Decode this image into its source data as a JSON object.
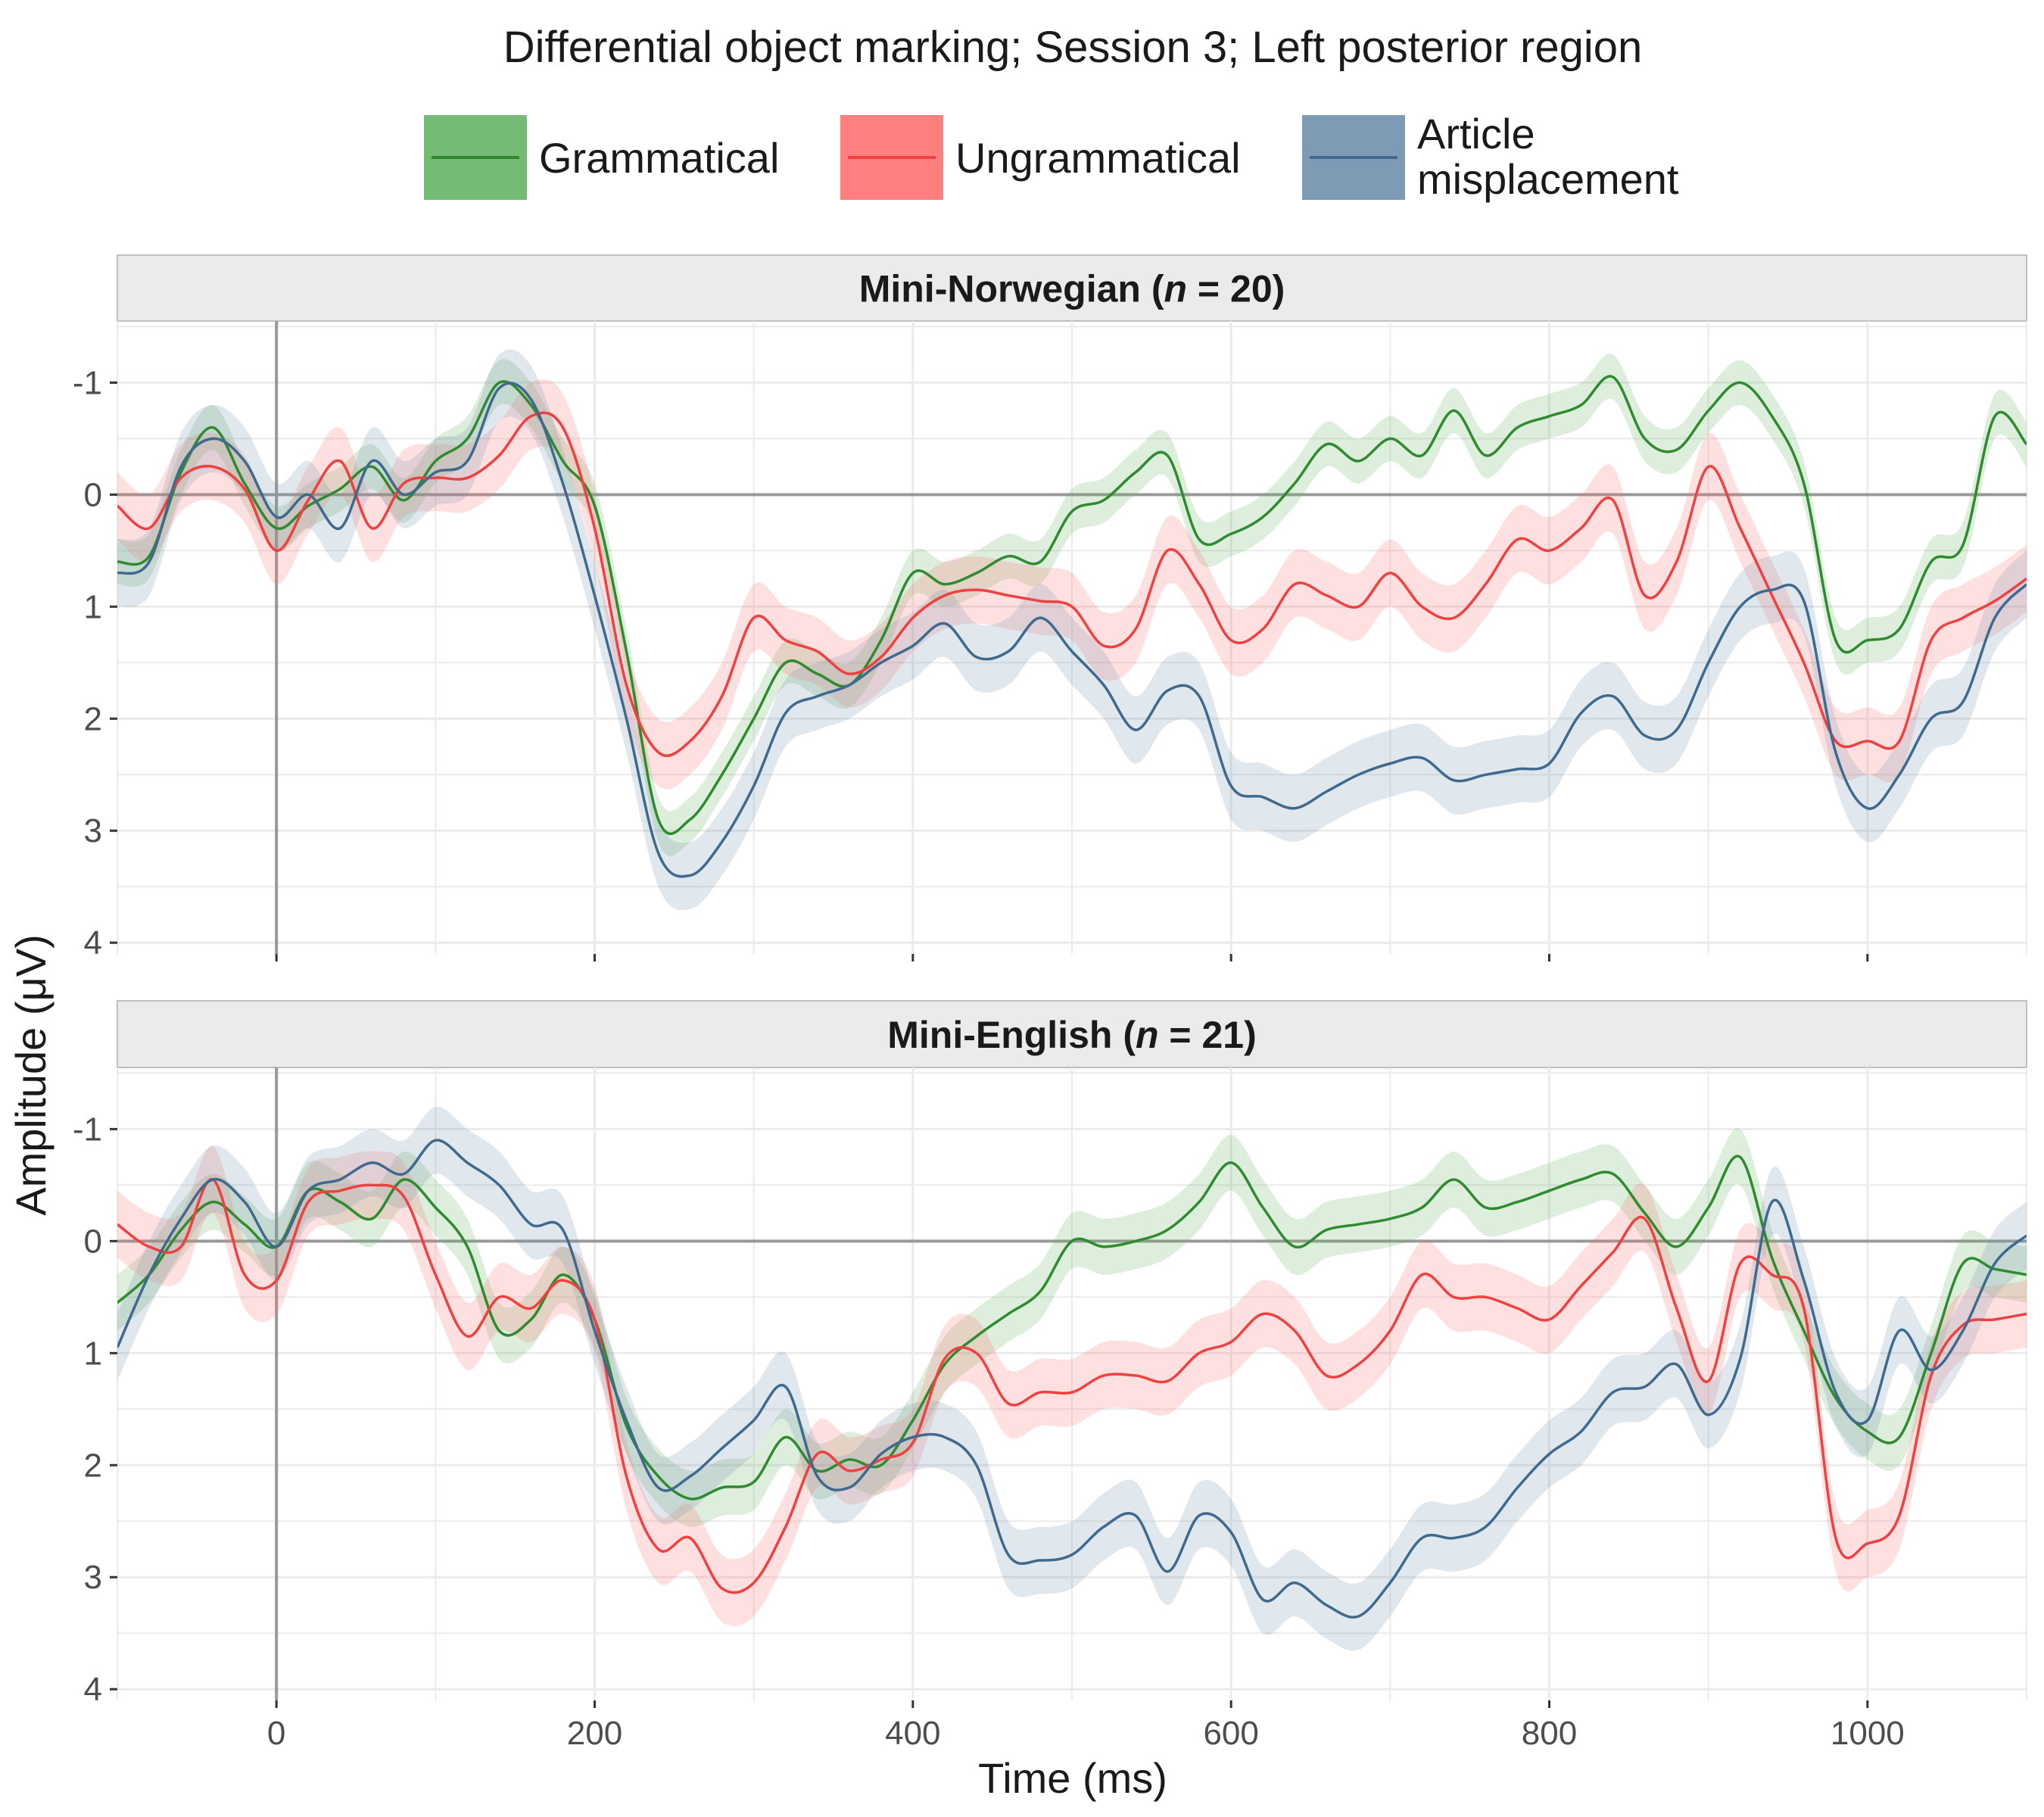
{
  "chart_data": {
    "type": "line",
    "title": "Differential object marking; Session 3; Left posterior region",
    "xlabel": "Time (ms)",
    "ylabel": "Amplitude (μV)",
    "xlim": [
      -100,
      1100
    ],
    "ylim": [
      4.1,
      -1.55
    ],
    "y_reversed": true,
    "x_ticks": [
      0,
      200,
      400,
      600,
      800,
      1000
    ],
    "y_ticks": [
      -1,
      0,
      1,
      2,
      3,
      4
    ],
    "grid": true,
    "legend_position": "top",
    "legend": [
      {
        "label": "Grammatical",
        "color": "#2e8b2e",
        "fill": "#66b266"
      },
      {
        "label": "Ungrammatical",
        "color": "#f04040",
        "fill": "#ff7070"
      },
      {
        "label": "Article\nmisplacement",
        "color": "#3e6a8f",
        "fill": "#7090ad"
      }
    ],
    "panels": [
      {
        "strip": "Mini-Norwegian (",
        "strip_n": "n",
        "strip_tail": " = 20)",
        "x": [
          -100,
          -80,
          -60,
          -40,
          -20,
          0,
          20,
          40,
          60,
          80,
          100,
          120,
          140,
          160,
          180,
          200,
          220,
          240,
          260,
          280,
          300,
          320,
          340,
          360,
          380,
          400,
          420,
          440,
          460,
          480,
          500,
          520,
          540,
          560,
          580,
          600,
          620,
          640,
          660,
          680,
          700,
          720,
          740,
          760,
          780,
          800,
          820,
          840,
          860,
          880,
          900,
          920,
          940,
          960,
          980,
          1000,
          1020,
          1040,
          1060,
          1080,
          1100
        ],
        "series": [
          {
            "name": "Grammatical",
            "ci": 0.2,
            "values": [
              0.6,
              0.55,
              -0.2,
              -0.6,
              -0.1,
              0.3,
              0.1,
              -0.05,
              -0.25,
              0.05,
              -0.3,
              -0.5,
              -1.0,
              -0.8,
              -0.3,
              0.1,
              1.4,
              2.9,
              2.9,
              2.5,
              2.0,
              1.5,
              1.6,
              1.7,
              1.3,
              0.7,
              0.8,
              0.7,
              0.55,
              0.6,
              0.15,
              0.05,
              -0.2,
              -0.35,
              0.4,
              0.35,
              0.2,
              -0.1,
              -0.45,
              -0.3,
              -0.5,
              -0.35,
              -0.75,
              -0.35,
              -0.6,
              -0.7,
              -0.8,
              -1.05,
              -0.5,
              -0.4,
              -0.75,
              -1.0,
              -0.7,
              -0.1,
              1.3,
              1.3,
              1.2,
              0.6,
              0.45,
              -0.7,
              -0.45
            ]
          },
          {
            "name": "Ungrammatical",
            "ci": 0.3,
            "values": [
              0.1,
              0.3,
              -0.15,
              -0.25,
              -0.05,
              0.5,
              0.05,
              -0.3,
              0.3,
              -0.1,
              -0.15,
              -0.15,
              -0.35,
              -0.7,
              -0.6,
              0.3,
              1.7,
              2.3,
              2.2,
              1.8,
              1.1,
              1.3,
              1.4,
              1.6,
              1.45,
              1.1,
              0.9,
              0.85,
              0.9,
              0.95,
              1.0,
              1.35,
              1.2,
              0.5,
              0.8,
              1.3,
              1.2,
              0.8,
              0.9,
              1.0,
              0.7,
              1.0,
              1.1,
              0.8,
              0.4,
              0.5,
              0.3,
              0.05,
              0.9,
              0.6,
              -0.25,
              0.3,
              0.9,
              1.5,
              2.2,
              2.2,
              2.2,
              1.3,
              1.1,
              0.95,
              0.75
            ]
          },
          {
            "name": "Article misplacement",
            "ci": 0.3,
            "values": [
              0.7,
              0.6,
              -0.25,
              -0.5,
              -0.3,
              0.2,
              0.0,
              0.3,
              -0.3,
              0.0,
              -0.2,
              -0.3,
              -0.95,
              -0.85,
              -0.1,
              0.9,
              2.0,
              3.2,
              3.4,
              3.1,
              2.6,
              1.95,
              1.8,
              1.7,
              1.5,
              1.35,
              1.15,
              1.45,
              1.4,
              1.1,
              1.4,
              1.7,
              2.1,
              1.75,
              1.8,
              2.6,
              2.7,
              2.8,
              2.65,
              2.5,
              2.4,
              2.35,
              2.55,
              2.5,
              2.45,
              2.4,
              1.95,
              1.8,
              2.15,
              2.1,
              1.5,
              1.0,
              0.85,
              0.95,
              2.3,
              2.8,
              2.5,
              2.0,
              1.85,
              1.1,
              0.8
            ]
          }
        ]
      },
      {
        "strip": "Mini-English (",
        "strip_n": "n",
        "strip_tail": " = 21)",
        "x": [
          -100,
          -80,
          -60,
          -40,
          -20,
          0,
          20,
          40,
          60,
          80,
          100,
          120,
          140,
          160,
          180,
          200,
          220,
          240,
          260,
          280,
          300,
          320,
          340,
          360,
          380,
          400,
          420,
          440,
          460,
          480,
          500,
          520,
          540,
          560,
          580,
          600,
          620,
          640,
          660,
          680,
          700,
          720,
          740,
          760,
          780,
          800,
          820,
          840,
          860,
          880,
          900,
          920,
          940,
          960,
          980,
          1000,
          1020,
          1040,
          1060,
          1080,
          1100
        ],
        "series": [
          {
            "name": "Grammatical",
            "ci": 0.25,
            "values": [
              0.55,
              0.3,
              -0.1,
              -0.35,
              -0.15,
              0.05,
              -0.45,
              -0.35,
              -0.2,
              -0.55,
              -0.3,
              0.05,
              0.8,
              0.7,
              0.3,
              0.7,
              1.65,
              2.1,
              2.3,
              2.2,
              2.15,
              1.75,
              2.05,
              1.95,
              2.0,
              1.6,
              1.1,
              0.85,
              0.65,
              0.45,
              0.0,
              0.05,
              0.0,
              -0.1,
              -0.35,
              -0.7,
              -0.3,
              0.05,
              -0.1,
              -0.15,
              -0.2,
              -0.3,
              -0.55,
              -0.3,
              -0.35,
              -0.45,
              -0.55,
              -0.6,
              -0.25,
              0.05,
              -0.3,
              -0.75,
              0.15,
              0.8,
              1.4,
              1.7,
              1.75,
              1.0,
              0.2,
              0.25,
              0.3
            ]
          },
          {
            "name": "Ungrammatical",
            "ci": 0.3,
            "values": [
              -0.15,
              0.05,
              0.05,
              -0.55,
              0.3,
              0.35,
              -0.35,
              -0.45,
              -0.5,
              -0.4,
              0.3,
              0.85,
              0.5,
              0.6,
              0.35,
              0.7,
              2.1,
              2.75,
              2.65,
              3.1,
              3.05,
              2.55,
              1.9,
              2.05,
              1.95,
              1.8,
              1.05,
              1.0,
              1.45,
              1.35,
              1.35,
              1.2,
              1.2,
              1.25,
              1.0,
              0.9,
              0.65,
              0.8,
              1.2,
              1.1,
              0.8,
              0.3,
              0.5,
              0.5,
              0.6,
              0.7,
              0.4,
              0.1,
              -0.2,
              0.6,
              1.25,
              0.2,
              0.3,
              0.6,
              2.65,
              2.7,
              2.45,
              1.2,
              0.75,
              0.7,
              0.65
            ]
          },
          {
            "name": "Article misplacement",
            "ci": 0.3,
            "values": [
              0.95,
              0.3,
              -0.2,
              -0.55,
              -0.35,
              0.05,
              -0.45,
              -0.55,
              -0.7,
              -0.6,
              -0.9,
              -0.7,
              -0.5,
              -0.15,
              -0.1,
              0.8,
              1.6,
              2.2,
              2.1,
              1.85,
              1.6,
              1.3,
              2.1,
              2.2,
              1.9,
              1.75,
              1.75,
              2.0,
              2.8,
              2.85,
              2.8,
              2.55,
              2.45,
              2.95,
              2.45,
              2.6,
              3.2,
              3.05,
              3.25,
              3.35,
              3.05,
              2.65,
              2.65,
              2.55,
              2.2,
              1.9,
              1.7,
              1.35,
              1.3,
              1.1,
              1.55,
              1.05,
              -0.35,
              0.35,
              1.35,
              1.6,
              0.8,
              1.15,
              0.8,
              0.2,
              -0.05
            ]
          }
        ]
      }
    ]
  }
}
